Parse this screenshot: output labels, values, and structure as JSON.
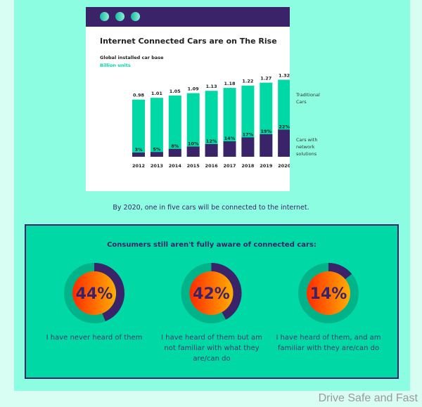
{
  "chart_data": [
    {
      "type": "bar",
      "title": "Internet Connected Cars are on The Rise",
      "subtitle": "Global installed car base",
      "unit": "Billion units",
      "categories": [
        "2012",
        "2013",
        "2014",
        "2015",
        "2016",
        "2017",
        "2018",
        "2019",
        "2020"
      ],
      "totals": [
        0.98,
        1.01,
        1.05,
        1.09,
        1.13,
        1.18,
        1.22,
        1.27,
        1.32
      ],
      "total_labels": [
        "0.98",
        "1.01",
        "1.05",
        "1.09",
        "1.13",
        "1.18",
        "1.22",
        "1.27",
        "1.32"
      ],
      "connected_share_pct": [
        3,
        5,
        8,
        10,
        12,
        14,
        17,
        19,
        22
      ],
      "series": [
        {
          "name": "Traditional Cars",
          "color": "#00d9a6"
        },
        {
          "name": "Cars with network solutions",
          "color": "#3a2368"
        }
      ],
      "legend_placement": "right",
      "grid": false
    },
    {
      "type": "pie",
      "title": "Consumers still aren't fully aware of connected cars:",
      "items": [
        {
          "value": 44,
          "label": "44%",
          "text": "I have never heard of them"
        },
        {
          "value": 42,
          "label": "42%",
          "text": "I have heard of them but am not familiar with what they are/can do"
        },
        {
          "value": 14,
          "label": "14%",
          "text": "I have heard of them, and am familiar with they are/can do"
        }
      ]
    }
  ],
  "legend": {
    "traditional": "Traditional Cars",
    "network": "Cars with network solutions"
  },
  "caption": "By 2020, one in five cars will be connected to the internet.",
  "watermark": "Drive Safe and Fast",
  "colors": {
    "purple": "#3a2368",
    "teal": "#00d9a6",
    "mint": "#8cfde0",
    "track": "#00b388"
  }
}
